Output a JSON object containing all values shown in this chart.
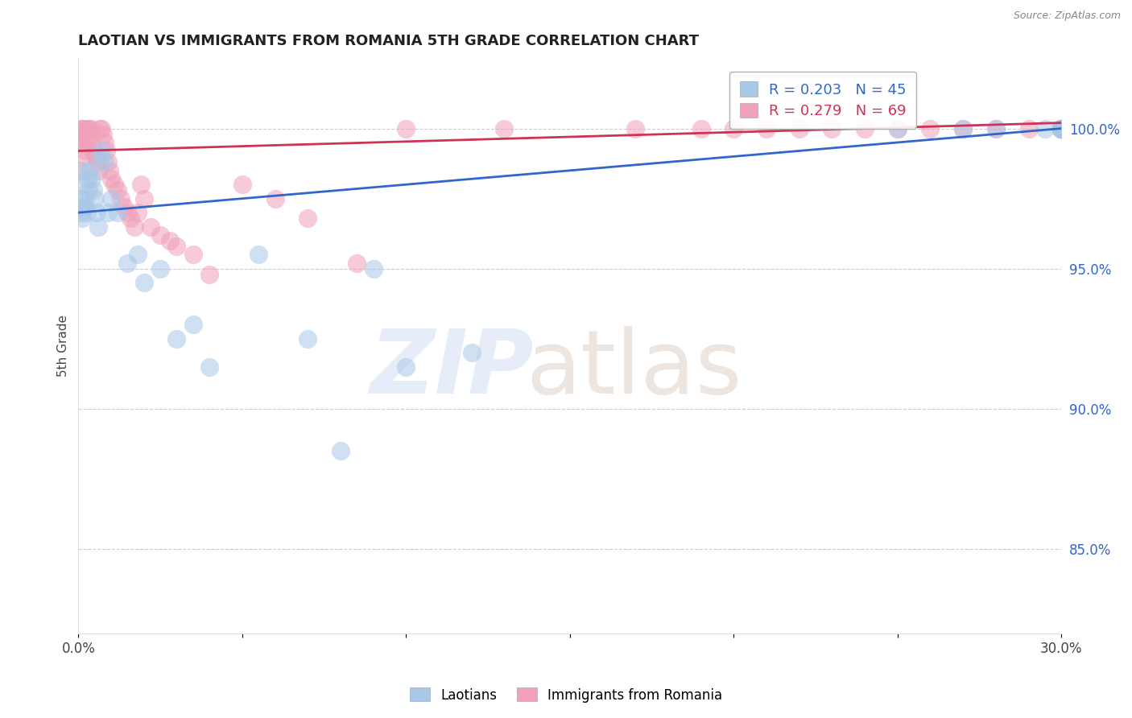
{
  "title": "LAOTIAN VS IMMIGRANTS FROM ROMANIA 5TH GRADE CORRELATION CHART",
  "source": "Source: ZipAtlas.com",
  "ylabel": "5th Grade",
  "xlim": [
    0.0,
    30.0
  ],
  "ylim": [
    82.0,
    102.5
  ],
  "yticks": [
    85.0,
    90.0,
    95.0,
    100.0
  ],
  "ytick_labels": [
    "85.0%",
    "90.0%",
    "95.0%",
    "100.0%"
  ],
  "blue_R": 0.203,
  "blue_N": 45,
  "pink_R": 0.279,
  "pink_N": 69,
  "blue_color": "#A8C8E8",
  "pink_color": "#F0A0B8",
  "blue_line_color": "#3366CC",
  "pink_line_color": "#CC3355",
  "legend_label_blue": "Laotians",
  "legend_label_pink": "Immigrants from Romania",
  "blue_x": [
    0.05,
    0.08,
    0.1,
    0.12,
    0.15,
    0.18,
    0.2,
    0.22,
    0.25,
    0.28,
    0.3,
    0.35,
    0.4,
    0.45,
    0.5,
    0.55,
    0.6,
    0.65,
    0.7,
    0.8,
    0.9,
    1.0,
    1.2,
    1.5,
    1.8,
    2.0,
    2.5,
    3.0,
    3.5,
    4.0,
    5.5,
    7.0,
    8.0,
    9.0,
    10.0,
    12.0,
    25.0,
    27.0,
    28.0,
    29.5,
    30.0,
    30.0,
    30.0,
    30.0,
    30.0
  ],
  "blue_y": [
    97.5,
    97.2,
    97.0,
    96.8,
    98.5,
    98.0,
    97.5,
    97.2,
    97.0,
    98.2,
    97.8,
    98.5,
    98.2,
    97.8,
    97.5,
    97.0,
    96.5,
    99.0,
    99.2,
    98.8,
    97.0,
    97.5,
    97.0,
    95.2,
    95.5,
    94.5,
    95.0,
    92.5,
    93.0,
    91.5,
    95.5,
    92.5,
    88.5,
    95.0,
    91.5,
    92.0,
    100.0,
    100.0,
    100.0,
    100.0,
    100.0,
    100.0,
    100.0,
    100.0,
    100.0
  ],
  "pink_x": [
    0.02,
    0.05,
    0.07,
    0.1,
    0.12,
    0.15,
    0.18,
    0.2,
    0.22,
    0.25,
    0.28,
    0.3,
    0.35,
    0.38,
    0.4,
    0.45,
    0.5,
    0.55,
    0.6,
    0.65,
    0.7,
    0.75,
    0.8,
    0.85,
    0.9,
    0.95,
    1.0,
    1.1,
    1.2,
    1.3,
    1.4,
    1.5,
    1.6,
    1.7,
    1.8,
    1.9,
    2.0,
    2.2,
    2.5,
    2.8,
    3.0,
    3.5,
    4.0,
    5.0,
    6.0,
    7.0,
    8.5,
    10.0,
    13.0,
    17.0,
    19.0,
    20.0,
    21.0,
    22.0,
    23.0,
    24.0,
    25.0,
    26.0,
    27.0,
    28.0,
    29.0,
    30.0,
    30.0,
    30.0,
    30.0,
    30.0,
    30.0,
    30.0,
    30.0
  ],
  "pink_y": [
    98.5,
    99.5,
    100.0,
    99.8,
    100.0,
    100.0,
    99.5,
    99.2,
    99.0,
    99.5,
    100.0,
    100.0,
    99.8,
    100.0,
    99.5,
    99.2,
    99.0,
    98.8,
    98.5,
    100.0,
    100.0,
    99.8,
    99.5,
    99.2,
    98.8,
    98.5,
    98.2,
    98.0,
    97.8,
    97.5,
    97.2,
    97.0,
    96.8,
    96.5,
    97.0,
    98.0,
    97.5,
    96.5,
    96.2,
    96.0,
    95.8,
    95.5,
    94.8,
    98.0,
    97.5,
    96.8,
    95.2,
    100.0,
    100.0,
    100.0,
    100.0,
    100.0,
    100.0,
    100.0,
    100.0,
    100.0,
    100.0,
    100.0,
    100.0,
    100.0,
    100.0,
    100.0,
    100.0,
    100.0,
    100.0,
    100.0,
    100.0,
    100.0,
    100.0
  ]
}
